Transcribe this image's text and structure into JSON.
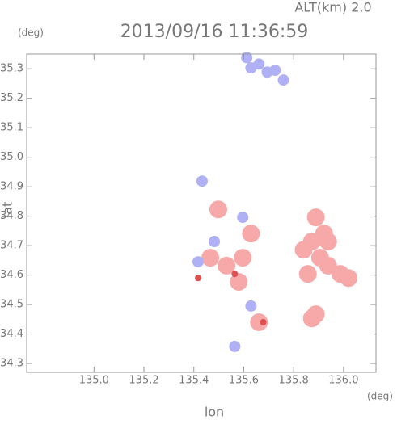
{
  "chart_data": {
    "type": "scatter",
    "title": "2013/09/16 11:36:59",
    "subtitle": "ALT(km) 2.0",
    "y_unit": "(deg)",
    "x_unit": "(deg)",
    "ylabel": "lat",
    "xlabel": "lon",
    "xlim": [
      134.73,
      136.13
    ],
    "ylim": [
      34.27,
      35.35
    ],
    "xticks": [
      {
        "value": 135.0,
        "label": "135.0"
      },
      135.2,
      135.4,
      135.6,
      135.8,
      {
        "value": 136.0,
        "label": "136.0"
      }
    ],
    "yticks": [
      34.3,
      34.4,
      34.5,
      34.6,
      34.7,
      34.8,
      34.9,
      {
        "value": 35.0,
        "label": "35.0"
      },
      35.1,
      35.2,
      35.3
    ],
    "series": [
      {
        "color": "#f7a8a8",
        "x": [
          135.873,
          135.906,
          135.84,
          135.922,
          135.889,
          135.987,
          136.02,
          135.938,
          135.889,
          135.873,
          135.938,
          135.857,
          135.531,
          135.466,
          135.596,
          135.58,
          135.498,
          135.629,
          135.661
        ],
        "y": [
          34.714,
          34.659,
          34.686,
          34.741,
          34.796,
          34.604,
          34.59,
          34.632,
          34.467,
          34.453,
          34.714,
          34.604,
          34.632,
          34.659,
          34.659,
          34.577,
          34.823,
          34.741,
          34.44
        ]
      },
      {
        "color": "#b0b0f4",
        "x": [
          135.661,
          135.629,
          135.694,
          135.726,
          135.759,
          135.612,
          135.417,
          135.482,
          135.596,
          135.629,
          135.433,
          135.564
        ],
        "y": [
          35.316,
          35.303,
          35.289,
          35.295,
          35.262,
          35.338,
          34.645,
          34.714,
          34.796,
          34.495,
          34.919,
          34.358
        ]
      },
      {
        "color": "#e05050",
        "x": [
          135.564,
          135.678,
          135.417
        ],
        "y": [
          34.604,
          34.44,
          34.59
        ]
      }
    ]
  }
}
